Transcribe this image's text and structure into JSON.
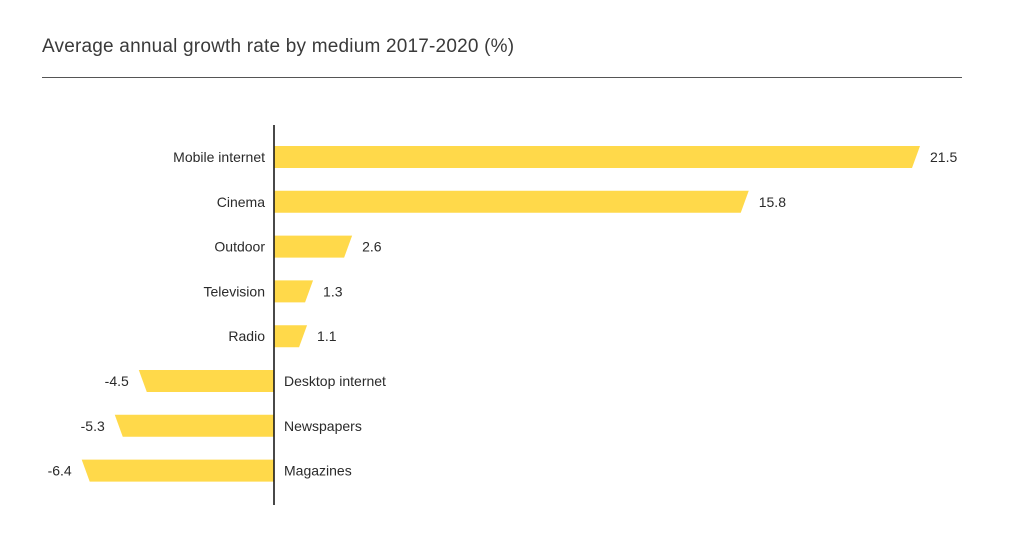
{
  "chart_data": {
    "type": "bar",
    "orientation": "horizontal",
    "title": "Average annual growth rate by medium 2017-2020 (%)",
    "categories": [
      "Mobile internet",
      "Cinema",
      "Outdoor",
      "Television",
      "Radio",
      "Desktop internet",
      "Newspapers",
      "Magazines"
    ],
    "values": [
      21.5,
      15.8,
      2.6,
      1.3,
      1.1,
      -4.5,
      -5.3,
      -6.4
    ],
    "value_labels": [
      "21.5",
      "15.8",
      "2.6",
      "1.3",
      "1.1",
      "-4.5",
      "-5.3",
      "-6.4"
    ],
    "xlabel": "",
    "ylabel": "",
    "grid": false,
    "legend": "none",
    "bar_color": "#FFD94A",
    "axis_color": "#1a1a1a"
  }
}
